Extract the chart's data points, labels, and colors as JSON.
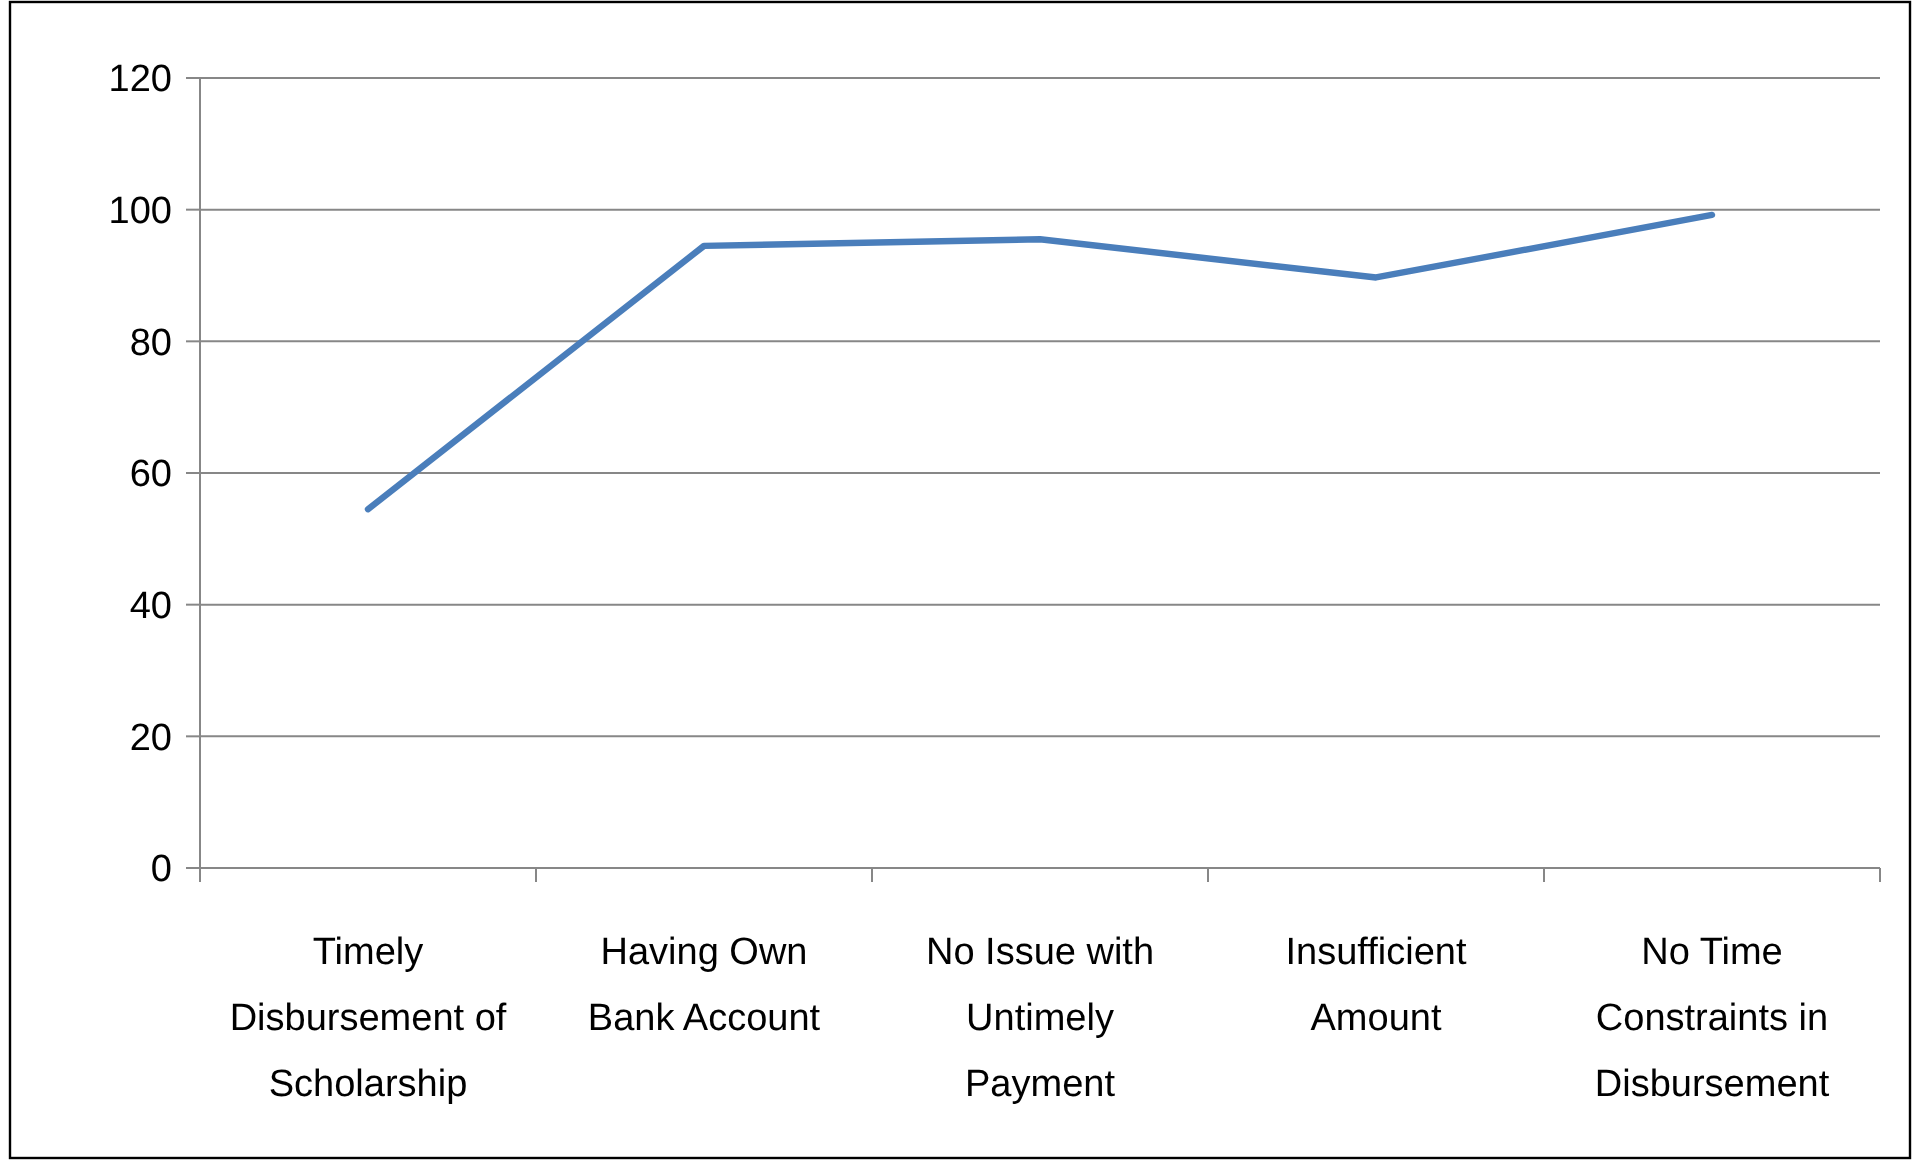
{
  "chart_data": {
    "type": "line",
    "categories": [
      "Timely Disbursement of Scholarship",
      "Having Own Bank Account",
      "No Issue with Untimely Payment",
      "Insufficient Amount",
      "No Time Constraints in Disbursement"
    ],
    "values": [
      54.5,
      94.5,
      95.5,
      89.7,
      99.2
    ],
    "color": "#4a7ebb",
    "ylim": [
      0,
      120
    ],
    "yticks": [
      0,
      20,
      40,
      60,
      80,
      100,
      120
    ],
    "grid": "y",
    "marker": "none",
    "line_style": "solid"
  }
}
